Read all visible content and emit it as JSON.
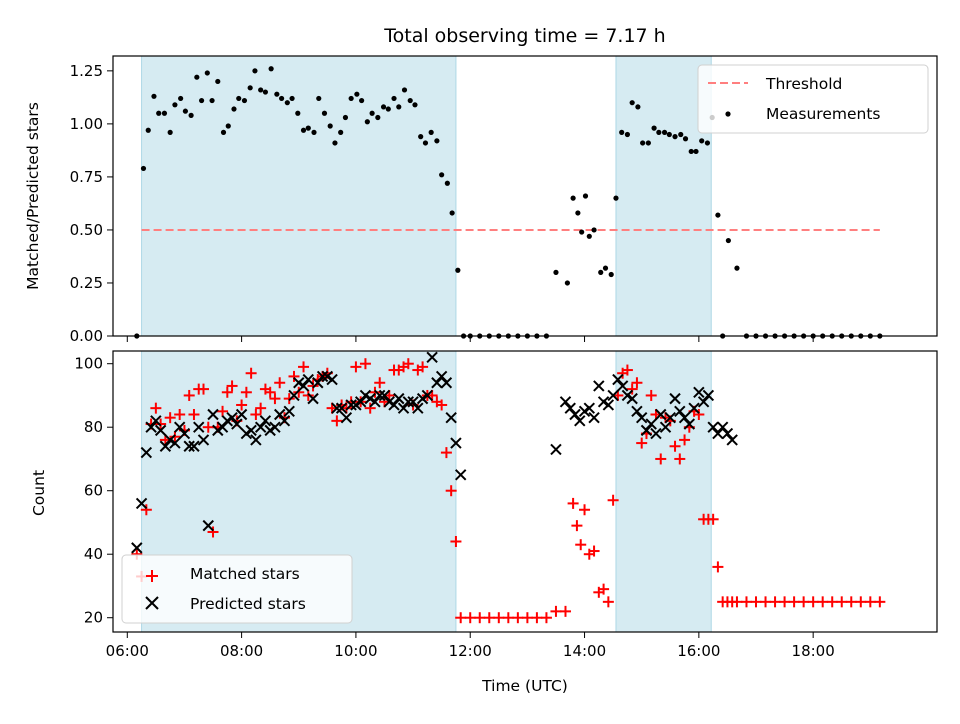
{
  "chart_data": [
    {
      "type": "scatter",
      "title": "Total observing time = 7.17 h",
      "xlabel": "",
      "ylabel": "Matched/Predicted stars",
      "xlim": [
        "05:45",
        "20:10"
      ],
      "ylim": [
        0,
        1.32
      ],
      "yticks": [
        "0.00",
        "0.25",
        "0.50",
        "0.75",
        "1.00",
        "1.25"
      ],
      "legend": {
        "placement": "top-right",
        "entries": [
          "Threshold",
          "Measurements"
        ]
      },
      "shaded_intervals": [
        [
          "06:15",
          "11:45"
        ],
        [
          "14:33",
          "16:13"
        ]
      ],
      "threshold": {
        "name": "Threshold",
        "value": 0.5,
        "x_range": [
          "06:15",
          "19:10"
        ],
        "color": "#ff7f7f"
      },
      "series": [
        {
          "name": "Measurements",
          "color": "#000000",
          "x": [
            "06:10",
            "06:17",
            "06:22",
            "06:28",
            "06:33",
            "06:39",
            "06:45",
            "06:50",
            "06:56",
            "07:01",
            "07:07",
            "07:13",
            "07:18",
            "07:24",
            "07:29",
            "07:35",
            "07:41",
            "07:46",
            "07:52",
            "07:57",
            "08:03",
            "08:09",
            "08:14",
            "08:20",
            "08:25",
            "08:31",
            "08:37",
            "08:42",
            "08:48",
            "08:53",
            "08:59",
            "09:05",
            "09:10",
            "09:16",
            "09:21",
            "09:27",
            "09:33",
            "09:38",
            "09:44",
            "09:49",
            "09:55",
            "10:01",
            "10:06",
            "10:12",
            "10:17",
            "10:23",
            "10:29",
            "10:34",
            "10:40",
            "10:45",
            "10:51",
            "10:57",
            "11:02",
            "11:08",
            "11:13",
            "11:19",
            "11:25",
            "11:30",
            "11:36",
            "11:41",
            "11:47",
            "11:53",
            "12:00",
            "12:10",
            "12:20",
            "12:30",
            "12:40",
            "12:50",
            "13:00",
            "13:10",
            "13:20",
            "13:30",
            "13:42",
            "13:48",
            "13:53",
            "13:57",
            "14:01",
            "14:05",
            "14:10",
            "14:17",
            "14:22",
            "14:28",
            "14:33",
            "14:39",
            "14:45",
            "14:50",
            "14:56",
            "15:01",
            "15:07",
            "15:13",
            "15:18",
            "15:24",
            "15:29",
            "15:35",
            "15:41",
            "15:46",
            "15:52",
            "15:57",
            "16:03",
            "16:09",
            "16:14",
            "16:20",
            "16:25",
            "16:31",
            "16:40",
            "16:50",
            "17:00",
            "17:10",
            "17:20",
            "17:30",
            "17:40",
            "17:50",
            "18:00",
            "18:10",
            "18:20",
            "18:30",
            "18:40",
            "18:50",
            "19:00",
            "19:10"
          ],
          "y": [
            0.0,
            0.79,
            0.97,
            1.13,
            1.05,
            1.05,
            0.96,
            1.09,
            1.12,
            1.06,
            1.04,
            1.22,
            1.11,
            1.24,
            1.11,
            1.2,
            0.96,
            0.99,
            1.07,
            1.12,
            1.11,
            1.17,
            1.25,
            1.16,
            1.15,
            1.26,
            1.14,
            1.12,
            1.1,
            1.12,
            1.05,
            0.97,
            0.98,
            0.96,
            1.12,
            1.05,
            0.99,
            0.91,
            0.96,
            1.03,
            1.12,
            1.14,
            1.11,
            1.01,
            1.05,
            1.03,
            1.08,
            1.07,
            1.12,
            1.08,
            1.16,
            1.11,
            1.09,
            0.94,
            0.91,
            0.96,
            0.92,
            0.76,
            0.72,
            0.58,
            0.31,
            0.0,
            0.0,
            0.0,
            0.0,
            0.0,
            0.0,
            0.0,
            0.0,
            0.0,
            0.0,
            0.3,
            0.25,
            0.65,
            0.58,
            0.49,
            0.66,
            0.47,
            0.5,
            0.3,
            0.32,
            0.29,
            0.65,
            0.96,
            0.95,
            1.1,
            1.08,
            0.91,
            0.91,
            0.98,
            0.96,
            0.96,
            0.95,
            0.94,
            0.95,
            0.93,
            0.87,
            0.87,
            0.92,
            0.91,
            1.03,
            0.57,
            0.0,
            0.45,
            0.32,
            0.0,
            0.0,
            0.0,
            0.0,
            0.0,
            0.0,
            0.0,
            0.0,
            0.0,
            0.0,
            0.0,
            0.0,
            0.0,
            0.0,
            0.0
          ]
        }
      ]
    },
    {
      "type": "scatter",
      "title": "",
      "xlabel": "Time (UTC)",
      "ylabel": "Count",
      "xlim": [
        "05:45",
        "20:10"
      ],
      "ylim": [
        15.5,
        104
      ],
      "yticks": [
        "20",
        "40",
        "60",
        "80",
        "100"
      ],
      "xticks": [
        "06:00",
        "08:00",
        "10:00",
        "12:00",
        "14:00",
        "16:00",
        "18:00"
      ],
      "legend": {
        "placement": "lower-left",
        "entries": [
          "Matched stars",
          "Predicted stars"
        ]
      },
      "shaded_intervals": [
        [
          "06:15",
          "11:45"
        ],
        [
          "14:33",
          "16:13"
        ]
      ],
      "series": [
        {
          "name": "Matched stars",
          "marker": "+",
          "color": "#ff0000",
          "x": [
            "06:10",
            "06:15",
            "06:20",
            "06:25",
            "06:30",
            "06:35",
            "06:40",
            "06:45",
            "06:50",
            "06:55",
            "07:00",
            "07:05",
            "07:10",
            "07:15",
            "07:20",
            "07:25",
            "07:30",
            "07:35",
            "07:40",
            "07:45",
            "07:50",
            "07:55",
            "08:00",
            "08:05",
            "08:10",
            "08:15",
            "08:20",
            "08:25",
            "08:30",
            "08:35",
            "08:40",
            "08:45",
            "08:50",
            "08:55",
            "09:00",
            "09:05",
            "09:10",
            "09:15",
            "09:20",
            "09:25",
            "09:30",
            "09:35",
            "09:40",
            "09:45",
            "09:50",
            "09:55",
            "10:00",
            "10:05",
            "10:10",
            "10:15",
            "10:20",
            "10:25",
            "10:30",
            "10:35",
            "10:40",
            "10:45",
            "10:50",
            "10:55",
            "11:00",
            "11:05",
            "11:10",
            "11:15",
            "11:20",
            "11:25",
            "11:30",
            "11:35",
            "11:40",
            "11:45",
            "11:50",
            "12:00",
            "12:10",
            "12:20",
            "12:30",
            "12:40",
            "12:50",
            "13:00",
            "13:10",
            "13:20",
            "13:30",
            "13:40",
            "13:48",
            "13:52",
            "13:56",
            "14:00",
            "14:05",
            "14:10",
            "14:15",
            "14:20",
            "14:25",
            "14:30",
            "14:35",
            "14:40",
            "14:45",
            "14:50",
            "14:55",
            "15:00",
            "15:05",
            "15:10",
            "15:15",
            "15:20",
            "15:25",
            "15:30",
            "15:35",
            "15:40",
            "15:45",
            "15:50",
            "15:55",
            "16:00",
            "16:05",
            "16:10",
            "16:15",
            "16:20",
            "16:25",
            "16:30",
            "16:35",
            "16:40",
            "16:50",
            "17:00",
            "17:10",
            "17:20",
            "17:30",
            "17:40",
            "17:50",
            "18:00",
            "18:10",
            "18:20",
            "18:30",
            "18:40",
            "18:50",
            "19:00",
            "19:10"
          ],
          "y": [
            40,
            33,
            54,
            81,
            86,
            81,
            76,
            83,
            77,
            84,
            79,
            90,
            84,
            92,
            92,
            80,
            47,
            80,
            85,
            91,
            93,
            82,
            87,
            91,
            97,
            84,
            86,
            92,
            91,
            89,
            94,
            83,
            89,
            96,
            91,
            99,
            90,
            93,
            95,
            96,
            97,
            86,
            82,
            87,
            86,
            88,
            99,
            88,
            100,
            86,
            91,
            94,
            88,
            90,
            98,
            98,
            99,
            100,
            87,
            98,
            99,
            90,
            90,
            88,
            87,
            72,
            60,
            44,
            20,
            20,
            20,
            20,
            20,
            20,
            20,
            20,
            20,
            20,
            22,
            22,
            56,
            49,
            43,
            54,
            40,
            41,
            28,
            29,
            25,
            57,
            90,
            97,
            98,
            92,
            94,
            75,
            78,
            90,
            84,
            70,
            83,
            82,
            74,
            70,
            76,
            80,
            85,
            84,
            51,
            51,
            51,
            36,
            25,
            25,
            25,
            25,
            25,
            25,
            25,
            25,
            25,
            25,
            25,
            25,
            25,
            25,
            25,
            25,
            25,
            25,
            25
          ]
        },
        {
          "name": "Predicted stars",
          "marker": "x",
          "color": "#000000",
          "x": [
            "06:10",
            "06:15",
            "06:20",
            "06:25",
            "06:30",
            "06:35",
            "06:40",
            "06:45",
            "06:50",
            "06:55",
            "07:00",
            "07:05",
            "07:10",
            "07:15",
            "07:20",
            "07:25",
            "07:30",
            "07:35",
            "07:40",
            "07:45",
            "07:50",
            "07:55",
            "08:00",
            "08:05",
            "08:10",
            "08:15",
            "08:20",
            "08:25",
            "08:30",
            "08:35",
            "08:40",
            "08:45",
            "08:50",
            "08:55",
            "09:00",
            "09:05",
            "09:10",
            "09:15",
            "09:20",
            "09:25",
            "09:30",
            "09:35",
            "09:40",
            "09:45",
            "09:50",
            "09:55",
            "10:00",
            "10:05",
            "10:10",
            "10:15",
            "10:20",
            "10:25",
            "10:30",
            "10:35",
            "10:40",
            "10:45",
            "10:50",
            "10:55",
            "11:00",
            "11:05",
            "11:10",
            "11:15",
            "11:20",
            "11:25",
            "11:30",
            "11:35",
            "11:40",
            "11:45",
            "11:50",
            "13:30",
            "13:40",
            "13:45",
            "13:50",
            "13:55",
            "14:00",
            "14:05",
            "14:10",
            "14:15",
            "14:20",
            "14:25",
            "14:30",
            "14:35",
            "14:40",
            "14:45",
            "14:50",
            "14:55",
            "15:00",
            "15:05",
            "15:10",
            "15:15",
            "15:20",
            "15:25",
            "15:30",
            "15:35",
            "15:40",
            "15:45",
            "15:50",
            "15:55",
            "16:00",
            "16:05",
            "16:10",
            "16:15",
            "16:20",
            "16:25",
            "16:30",
            "16:35"
          ],
          "y": [
            42,
            56,
            72,
            80,
            82,
            79,
            74,
            76,
            75,
            80,
            78,
            74,
            74,
            80,
            76,
            49,
            84,
            79,
            80,
            82,
            83,
            81,
            84,
            78,
            79,
            76,
            80,
            82,
            79,
            80,
            84,
            82,
            85,
            90,
            94,
            93,
            95,
            89,
            94,
            96,
            96,
            95,
            86,
            86,
            83,
            87,
            87,
            88,
            90,
            89,
            88,
            90,
            90,
            88,
            87,
            89,
            86,
            88,
            88,
            86,
            89,
            90,
            102,
            94,
            96,
            94,
            83,
            75,
            65,
            73,
            88,
            86,
            84,
            82,
            85,
            86,
            83,
            93,
            88,
            87,
            90,
            95,
            93,
            90,
            89,
            85,
            83,
            79,
            81,
            78,
            84,
            80,
            83,
            89,
            85,
            83,
            81,
            86,
            91,
            88,
            90,
            80,
            78,
            80,
            78,
            76
          ]
        }
      ]
    }
  ]
}
